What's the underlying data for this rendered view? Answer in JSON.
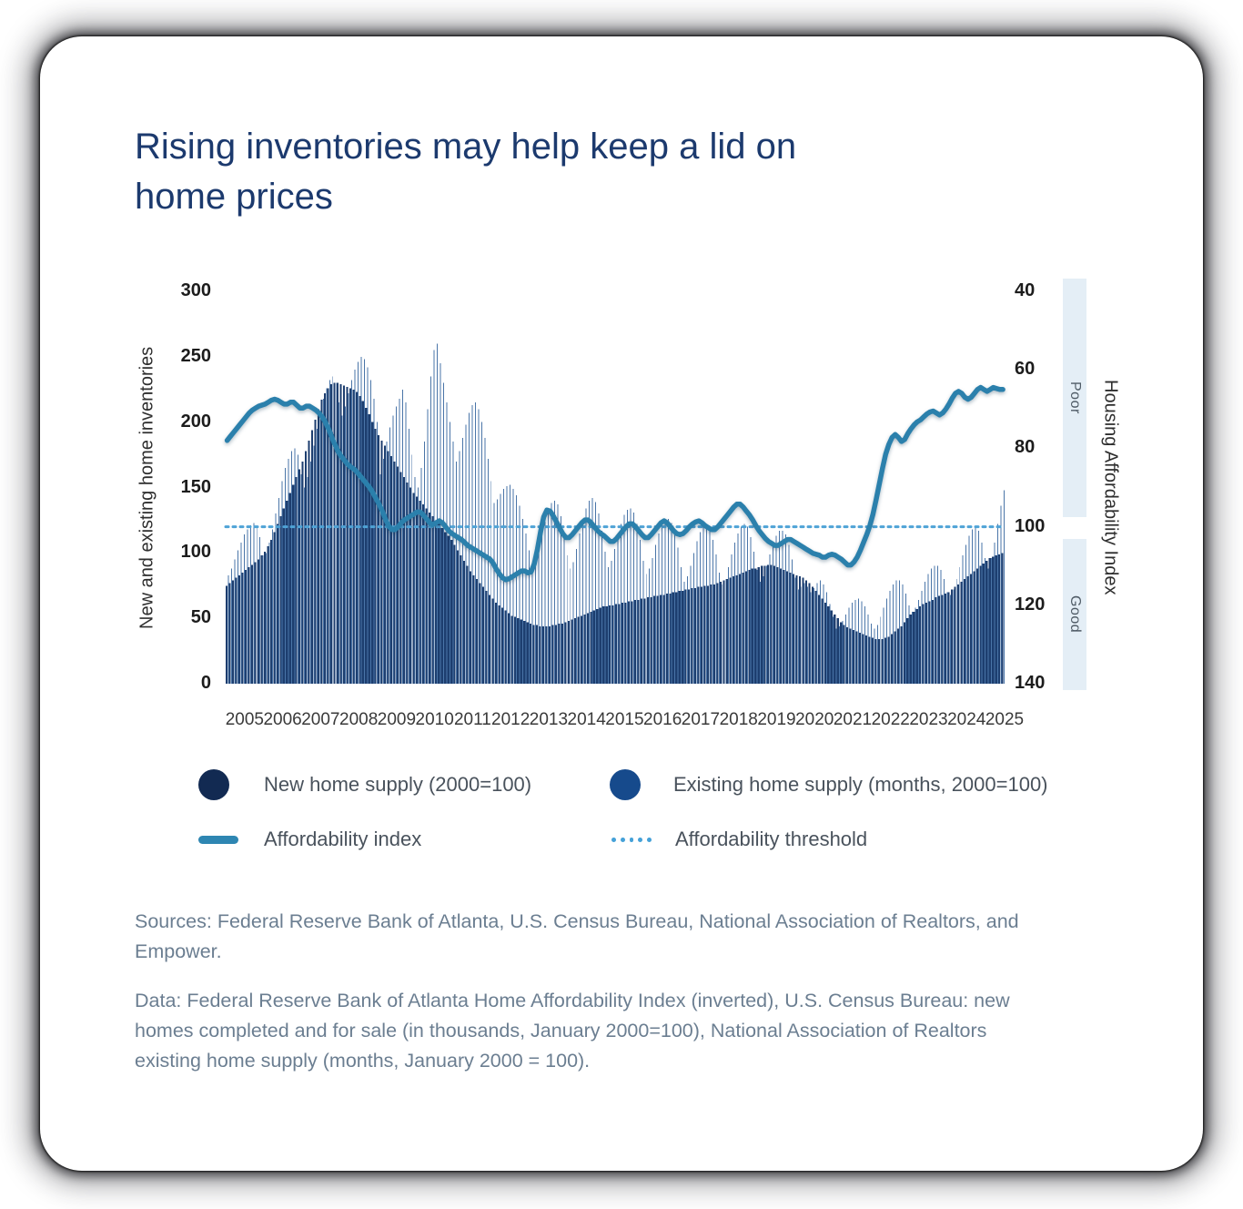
{
  "header": {
    "title": "Rising inventories may help keep a lid on home prices"
  },
  "chart_data": {
    "type": "combo-bar-line",
    "title": "Rising inventories may help keep a lid on home prices",
    "grid": false,
    "years": [
      "2005",
      "2006",
      "2007",
      "2008",
      "2009",
      "2010",
      "2011",
      "2012",
      "2013",
      "2014",
      "2015",
      "2016",
      "2017",
      "2018",
      "2019",
      "2020",
      "2021",
      "2022",
      "2023",
      "2024",
      "2025"
    ],
    "left_axis": {
      "label": "New and existing home inventories",
      "range": [
        0,
        300
      ],
      "ticks": [
        300,
        250,
        200,
        150,
        100,
        50,
        0
      ]
    },
    "right_axis": {
      "label": "Housing Affordability Index",
      "range": [
        40,
        140
      ],
      "inverted": true,
      "ticks": [
        40,
        60,
        80,
        100,
        120,
        140
      ],
      "zones": [
        {
          "label": "Poor",
          "from": 40,
          "to": 98
        },
        {
          "label": "Good",
          "from": 103,
          "to": 140
        }
      ],
      "zone_strip_color": "#e4eef6"
    },
    "threshold": {
      "label": "Affordability threshold",
      "value": 100,
      "color": "#4fa3d6"
    },
    "series": [
      {
        "name": "New home supply (2000=100)",
        "type": "bar",
        "axis": "left",
        "color": "#1d3e6f",
        "values": [
          75,
          77,
          79,
          81,
          83,
          85,
          87,
          89,
          91,
          93,
          95,
          98,
          101,
          105,
          110,
          116,
          122,
          128,
          134,
          140,
          146,
          152,
          158,
          164,
          170,
          178,
          186,
          194,
          202,
          210,
          217,
          222,
          226,
          229,
          230,
          230,
          229,
          228,
          227,
          226,
          225,
          223,
          220,
          216,
          211,
          206,
          200,
          195,
          190,
          186,
          182,
          178,
          174,
          170,
          166,
          162,
          158,
          154,
          150,
          146,
          143,
          140,
          137,
          134,
          131,
          128,
          125,
          122,
          119,
          116,
          113,
          110,
          106,
          102,
          98,
          94,
          90,
          86,
          83,
          80,
          77,
          74,
          71,
          68,
          65,
          62,
          60,
          58,
          56,
          54,
          52,
          51,
          50,
          49,
          48,
          47,
          46,
          45,
          45,
          44,
          44,
          44,
          44,
          45,
          45,
          46,
          46,
          47,
          48,
          49,
          50,
          51,
          52,
          53,
          54,
          55,
          56,
          57,
          58,
          59,
          59,
          60,
          60,
          61,
          61,
          62,
          62,
          63,
          63,
          64,
          64,
          65,
          65,
          66,
          66,
          67,
          67,
          68,
          68,
          69,
          69,
          70,
          70,
          71,
          71,
          72,
          72,
          73,
          73,
          74,
          74,
          75,
          75,
          76,
          76,
          77,
          78,
          79,
          80,
          81,
          82,
          83,
          84,
          85,
          86,
          87,
          88,
          88,
          89,
          90,
          90,
          91,
          91,
          90,
          89,
          88,
          87,
          86,
          85,
          84,
          83,
          82,
          81,
          79,
          77,
          74,
          71,
          68,
          65,
          62,
          59,
          56,
          53,
          50,
          47,
          45,
          43,
          42,
          41,
          40,
          39,
          38,
          37,
          36,
          35,
          34,
          34,
          34,
          35,
          36,
          38,
          40,
          42,
          44,
          47,
          50,
          53,
          55,
          57,
          59,
          61,
          62,
          63,
          64,
          66,
          67,
          68,
          69,
          70,
          72,
          74,
          76,
          78,
          80,
          82,
          84,
          86,
          88,
          90,
          92,
          94,
          96,
          97,
          98,
          99,
          100
        ]
      },
      {
        "name": "Existing home supply (months, 2000=100)",
        "type": "bar",
        "axis": "left",
        "color": "#4a75a8",
        "values": [
          83,
          88,
          95,
          102,
          108,
          114,
          118,
          121,
          123,
          120,
          112,
          98,
          100,
          108,
          118,
          130,
          142,
          155,
          165,
          172,
          178,
          180,
          175,
          160,
          150,
          158,
          170,
          182,
          195,
          208,
          218,
          226,
          232,
          235,
          230,
          215,
          205,
          212,
          222,
          232,
          240,
          246,
          250,
          248,
          242,
          232,
          218,
          200,
          160,
          172,
          185,
          196,
          205,
          212,
          218,
          225,
          215,
          195,
          175,
          158,
          150,
          165,
          185,
          210,
          235,
          255,
          260,
          245,
          230,
          215,
          200,
          185,
          170,
          178,
          188,
          198,
          207,
          213,
          215,
          210,
          200,
          188,
          172,
          155,
          138,
          141,
          145,
          149,
          151,
          152,
          149,
          144,
          136,
          126,
          115,
          102,
          92,
          96,
          104,
          114,
          124,
          132,
          138,
          140,
          137,
          128,
          115,
          98,
          88,
          93,
          103,
          115,
          126,
          134,
          140,
          142,
          139,
          130,
          117,
          101,
          89,
          94,
          103,
          113,
          122,
          129,
          133,
          134,
          131,
          122,
          110,
          94,
          84,
          88,
          96,
          106,
          115,
          121,
          125,
          126,
          123,
          115,
          104,
          89,
          78,
          82,
          90,
          100,
          109,
          116,
          120,
          121,
          118,
          110,
          99,
          85,
          76,
          80,
          89,
          99,
          108,
          115,
          120,
          122,
          120,
          112,
          101,
          87,
          78,
          82,
          90,
          99,
          107,
          113,
          117,
          117,
          114,
          106,
          95,
          81,
          72,
          74,
          77,
          74,
          70,
          73,
          77,
          79,
          76,
          70,
          61,
          51,
          42,
          44,
          48,
          53,
          58,
          62,
          64,
          65,
          63,
          59,
          53,
          46,
          42,
          45,
          51,
          58,
          65,
          71,
          76,
          79,
          79,
          76,
          69,
          60,
          55,
          58,
          64,
          71,
          78,
          84,
          88,
          90,
          90,
          87,
          80,
          70,
          68,
          72,
          80,
          89,
          98,
          106,
          113,
          118,
          120,
          117,
          108,
          96,
          88,
          96,
          108,
          122,
          136,
          148
        ]
      },
      {
        "name": "Affordability index",
        "type": "line",
        "axis": "right",
        "color": "#2b80ac",
        "values": [
          78,
          77,
          76,
          75,
          74,
          73,
          72,
          71,
          70,
          70,
          69,
          69,
          69,
          68,
          68,
          67,
          68,
          68,
          69,
          69,
          68,
          68,
          69,
          70,
          70,
          69,
          69,
          70,
          70,
          71,
          72,
          73,
          75,
          77,
          79,
          81,
          82,
          83,
          84,
          85,
          85,
          86,
          87,
          88,
          89,
          90,
          91,
          93,
          94,
          96,
          98,
          100,
          101,
          101,
          100,
          99,
          98,
          98,
          97,
          97,
          96,
          96,
          97,
          98,
          99,
          100,
          99,
          98,
          99,
          100,
          101,
          102,
          102,
          103,
          103,
          104,
          105,
          105,
          106,
          106,
          107,
          107,
          108,
          108,
          109,
          111,
          112,
          113,
          114,
          113,
          113,
          112,
          112,
          111,
          111,
          112,
          112,
          110,
          106,
          101,
          97,
          95,
          96,
          97,
          99,
          100,
          102,
          103,
          103,
          102,
          101,
          100,
          99,
          98,
          98,
          99,
          100,
          101,
          102,
          102,
          103,
          104,
          104,
          103,
          102,
          101,
          100,
          99,
          99,
          100,
          101,
          102,
          103,
          103,
          102,
          101,
          100,
          99,
          98,
          99,
          100,
          101,
          102,
          102,
          102,
          101,
          100,
          99,
          99,
          98,
          99,
          100,
          100,
          101,
          101,
          100,
          99,
          98,
          97,
          96,
          95,
          94,
          94,
          95,
          96,
          97,
          98,
          100,
          101,
          102,
          103,
          104,
          104,
          105,
          105,
          104,
          104,
          103,
          103,
          104,
          104,
          105,
          105,
          106,
          106,
          107,
          107,
          107,
          108,
          108,
          107,
          107,
          107,
          108,
          108,
          109,
          110,
          110,
          109,
          108,
          106,
          104,
          102,
          100,
          97,
          93,
          89,
          85,
          81,
          79,
          77,
          76,
          77,
          79,
          78,
          76,
          75,
          74,
          73,
          73,
          72,
          71,
          71,
          70,
          71,
          72,
          71,
          70,
          69,
          67,
          66,
          65,
          66,
          67,
          68,
          67,
          66,
          65,
          64,
          65,
          66,
          65,
          64,
          65,
          65,
          65
        ]
      }
    ],
    "legend": [
      {
        "label": "New home supply (2000=100)",
        "marker": "circle",
        "color": "#122a52"
      },
      {
        "label": "Existing home supply (months, 2000=100)",
        "marker": "circle",
        "color": "#164a8c"
      },
      {
        "label": "Affordability index",
        "marker": "line",
        "color": "#2e86b2"
      },
      {
        "label": "Affordability threshold",
        "marker": "dotted-line",
        "color": "#45a1d8"
      }
    ]
  },
  "footer": {
    "sources": "Sources: Federal Reserve Bank of Atlanta, U.S. Census Bureau, National Association of Realtors, and Empower.",
    "data_note": "Data: Federal Reserve Bank of Atlanta Home Affordability Index (inverted), U.S. Census Bureau: new homes completed and for sale (in thousands, January 2000=100), National Association of Realtors existing home supply (months, January 2000 = 100)."
  }
}
